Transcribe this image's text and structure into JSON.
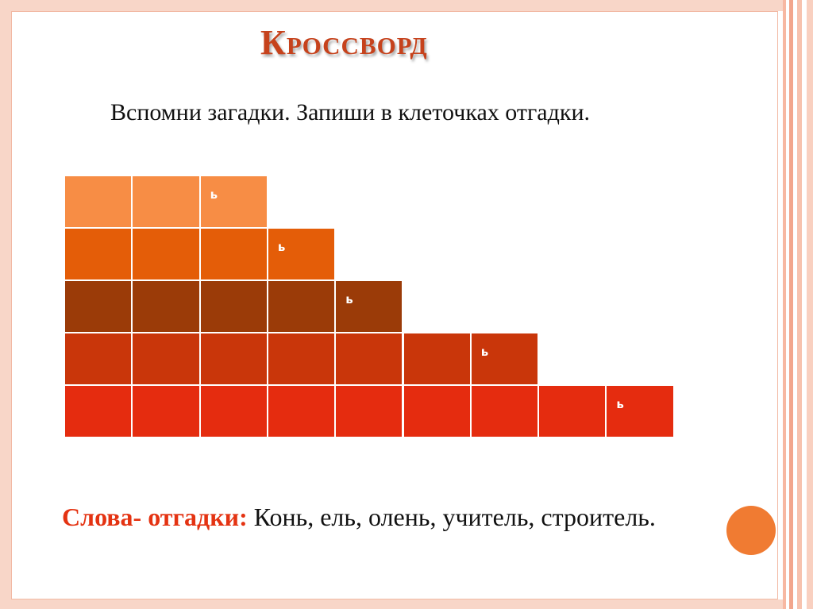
{
  "title": "Кроссворд",
  "instruction": "Вспомни загадки. Запиши в клеточках отгадки.",
  "answers": {
    "label": "Слова- отгадки:",
    "words": " Конь, ель, олень, учитель, строитель."
  },
  "crossword": {
    "rows": [
      {
        "cells": [
          "",
          "",
          "ь"
        ],
        "color": "#f78d45"
      },
      {
        "cells": [
          "",
          "",
          "",
          "ь"
        ],
        "color": "#e45d08"
      },
      {
        "cells": [
          "",
          "",
          "",
          "",
          "ь"
        ],
        "color": "#9b3b08"
      },
      {
        "cells": [
          "",
          "",
          "",
          "",
          "",
          "",
          "ь"
        ],
        "color": "#c9360a"
      },
      {
        "cells": [
          "",
          "",
          "",
          "",
          "",
          "",
          "",
          "",
          "ь"
        ],
        "color": "#e52c0f"
      }
    ]
  },
  "colors": {
    "frame": "#f8d6c8",
    "title": "#c6421c",
    "label": "#e43312",
    "circle": "#f07b32",
    "stripes": [
      "#f7b8a2",
      "#ffffff",
      "#f2a58c",
      "#ffffff",
      "#f7c2ae",
      "#ffffff",
      "#f9d0c0"
    ]
  }
}
